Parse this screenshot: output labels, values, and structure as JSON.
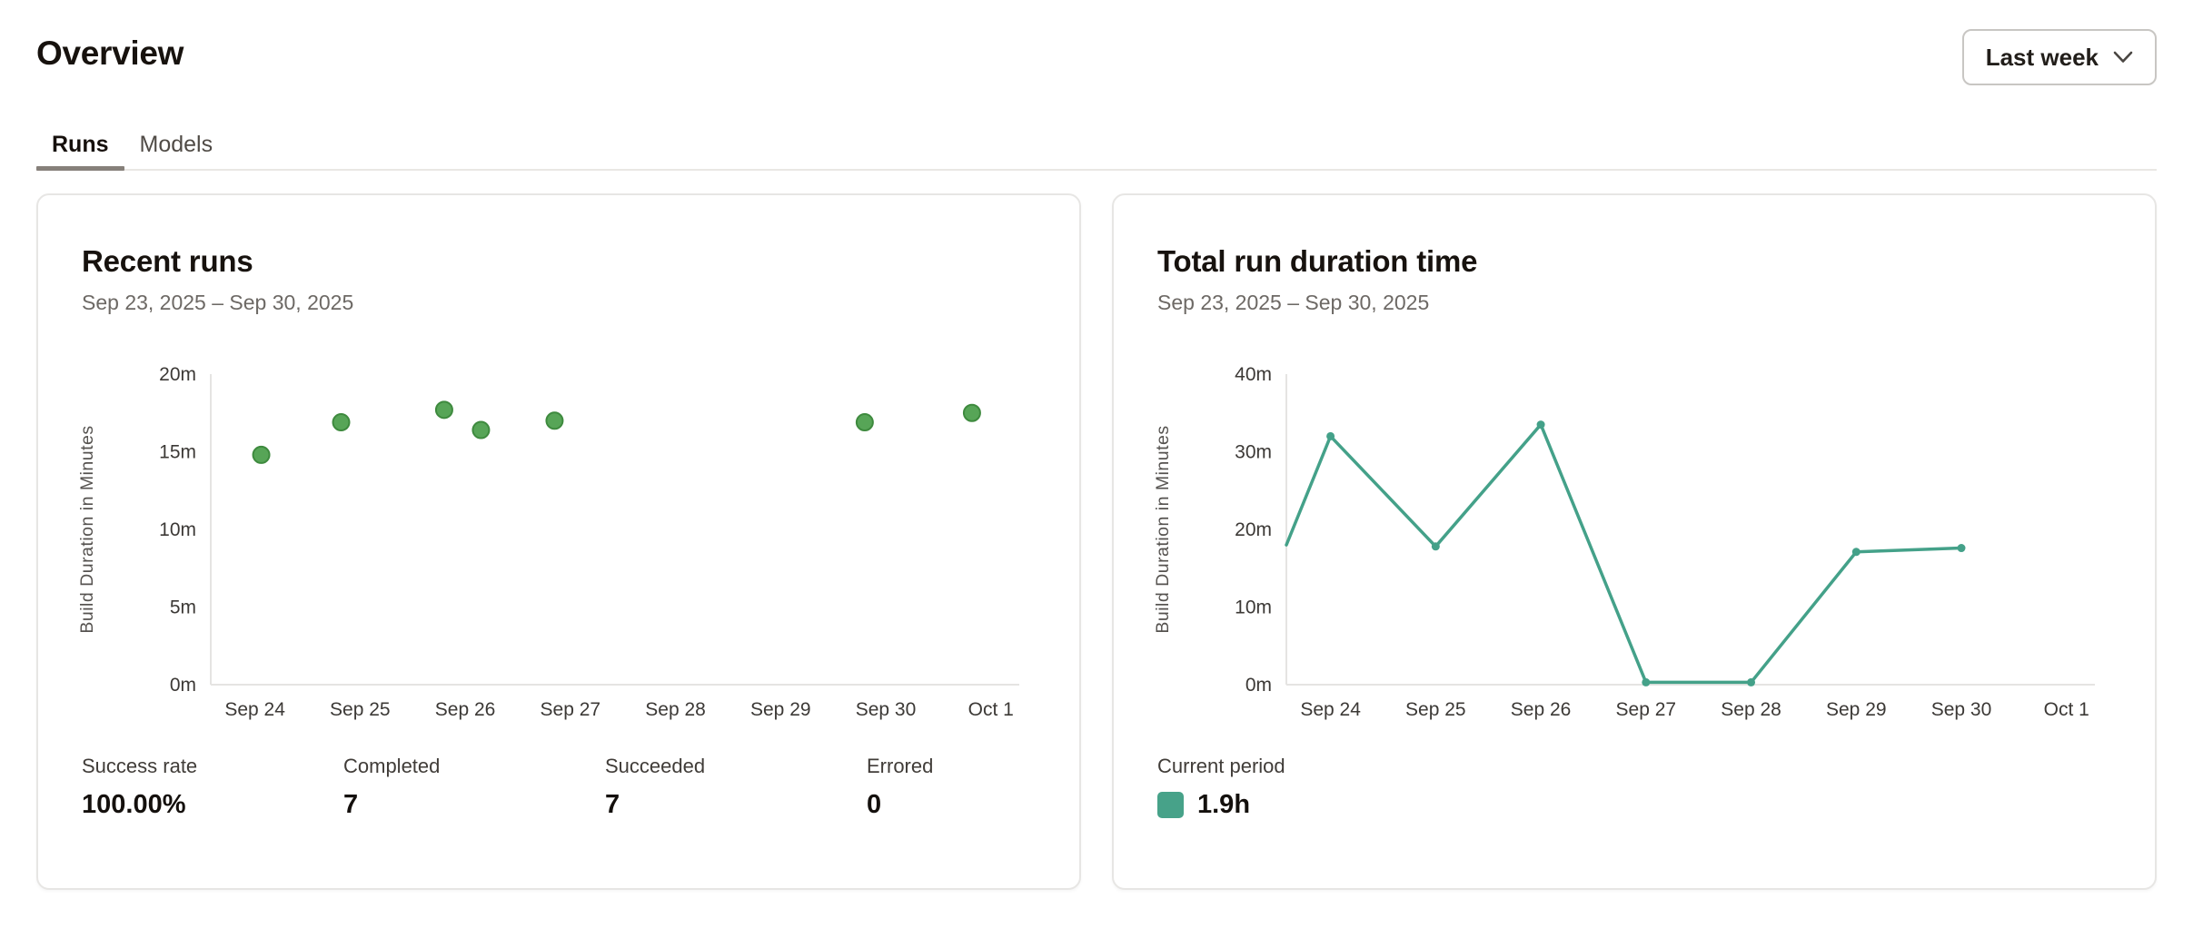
{
  "page": {
    "title": "Overview"
  },
  "period_selector": {
    "label": "Last week",
    "icon": "chevron-down-icon"
  },
  "tabs": [
    {
      "label": "Runs",
      "active": true
    },
    {
      "label": "Models",
      "active": false
    }
  ],
  "cards": [
    {
      "title": "Recent runs",
      "date_range": "Sep 23, 2025 – Sep 30, 2025",
      "stats": [
        {
          "label": "Success rate",
          "value": "100.00%"
        },
        {
          "label": "Completed",
          "value": "7"
        },
        {
          "label": "Succeeded",
          "value": "7"
        },
        {
          "label": "Errored",
          "value": "0"
        }
      ]
    },
    {
      "title": "Total run duration time",
      "date_range": "Sep 23, 2025 – Sep 30, 2025",
      "legend": {
        "label": "Current period",
        "value": "1.9h",
        "swatch_color": "#47a289"
      }
    }
  ],
  "chart_data": [
    {
      "type": "scatter",
      "title": "Recent runs",
      "xlabel": "",
      "ylabel": "Build Duration in Minutes",
      "ylim": [
        0,
        20
      ],
      "y_tick_labels": [
        "0m",
        "5m",
        "10m",
        "15m",
        "20m"
      ],
      "x_tick_labels": [
        "Sep 24",
        "Sep 25",
        "Sep 26",
        "Sep 27",
        "Sep 28",
        "Sep 29",
        "Sep 30",
        "Oct 1"
      ],
      "x_domain_days": [
        -0.42,
        7.27
      ],
      "grid": false,
      "point_color": "#57a557",
      "point_stroke": "#3e8a3e",
      "points": [
        {
          "day": 0.06,
          "minutes": 14.8
        },
        {
          "day": 0.82,
          "minutes": 16.9
        },
        {
          "day": 1.8,
          "minutes": 17.7
        },
        {
          "day": 2.15,
          "minutes": 16.4
        },
        {
          "day": 2.85,
          "minutes": 17.0
        },
        {
          "day": 5.8,
          "minutes": 16.9
        },
        {
          "day": 6.82,
          "minutes": 17.5
        }
      ]
    },
    {
      "type": "line",
      "title": "Total run duration time",
      "xlabel": "",
      "ylabel": "Build Duration in Minutes",
      "ylim": [
        0,
        40
      ],
      "y_tick_labels": [
        "0m",
        "10m",
        "20m",
        "30m",
        "40m"
      ],
      "x_tick_labels": [
        "Sep 24",
        "Sep 25",
        "Sep 26",
        "Sep 27",
        "Sep 28",
        "Sep 29",
        "Sep 30",
        "Oct 1"
      ],
      "x_domain_days": [
        -0.42,
        7.27
      ],
      "grid": false,
      "line_color": "#44a189",
      "legend_position": "bottom-left",
      "total_label": "1.9h",
      "points": [
        {
          "day": -0.42,
          "minutes": 18.0
        },
        {
          "day": 0,
          "minutes": 32.0
        },
        {
          "day": 1,
          "minutes": 17.8
        },
        {
          "day": 2,
          "minutes": 33.5
        },
        {
          "day": 3,
          "minutes": 0.3
        },
        {
          "day": 4,
          "minutes": 0.3
        },
        {
          "day": 5,
          "minutes": 17.1
        },
        {
          "day": 6,
          "minutes": 17.6
        }
      ]
    }
  ]
}
